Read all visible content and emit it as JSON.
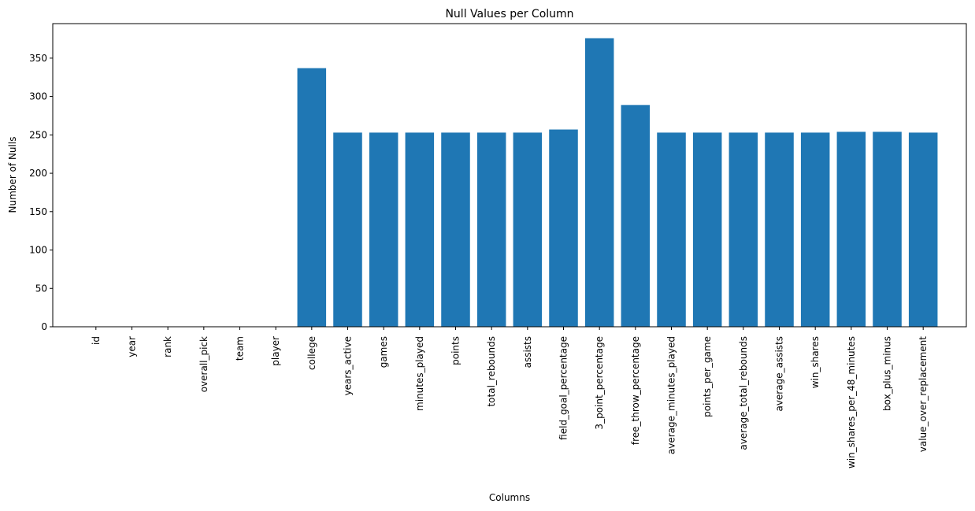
{
  "chart_data": {
    "type": "bar",
    "title": "Null Values per Column",
    "xlabel": "Columns",
    "ylabel": "Number of Nulls",
    "categories": [
      "id",
      "year",
      "rank",
      "overall_pick",
      "team",
      "player",
      "college",
      "years_active",
      "games",
      "minutes_played",
      "points",
      "total_rebounds",
      "assists",
      "field_goal_percentage",
      "3_point_percentage",
      "free_throw_percentage",
      "average_minutes_played",
      "points_per_game",
      "average_total_rebounds",
      "average_assists",
      "win_shares",
      "win_shares_per_48_minutes",
      "box_plus_minus",
      "value_over_replacement"
    ],
    "values": [
      0,
      0,
      0,
      0,
      0,
      0,
      337,
      253,
      253,
      253,
      253,
      253,
      253,
      257,
      376,
      289,
      253,
      253,
      253,
      253,
      253,
      254,
      254,
      253
    ],
    "yticks": [
      0,
      50,
      100,
      150,
      200,
      250,
      300,
      350
    ],
    "ylim": [
      0,
      395
    ],
    "bar_color": "#1f77b4",
    "grid": false,
    "legend": "none"
  }
}
